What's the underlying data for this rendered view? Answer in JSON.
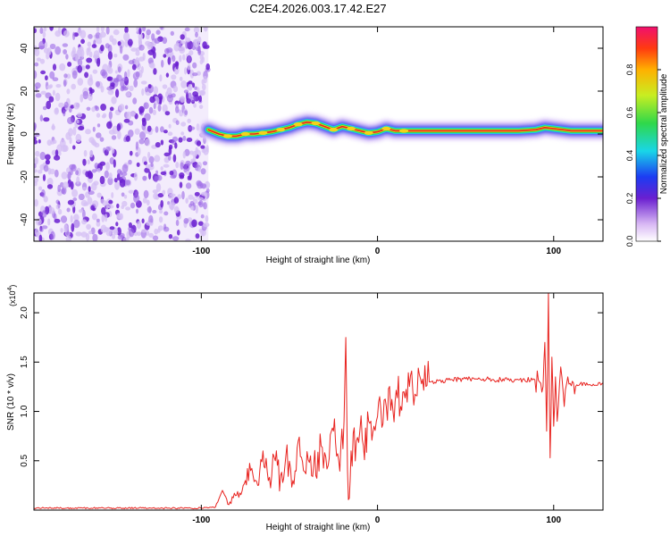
{
  "title": "C2E4.2026.003.17.42.E27",
  "colors": {
    "signal_line": "#e8231f",
    "noise_dots": "#6a1fd0",
    "axis": "#000000"
  },
  "chart_data": [
    {
      "type": "heatmap",
      "name": "spectrogram",
      "xlabel": "Height of straight line (km)",
      "ylabel": "Frequency (Hz)",
      "xlim": [
        -195,
        128
      ],
      "ylim": [
        -50,
        50
      ],
      "xticks": [
        -100,
        0,
        100
      ],
      "xtick_labels": [
        "-100",
        "0",
        "100"
      ],
      "yticks": [
        -40,
        -20,
        0,
        20,
        40
      ],
      "ytick_labels": [
        "-40",
        "-20",
        "0",
        "20",
        "40"
      ],
      "noise_region_x": [
        -195,
        -96
      ],
      "ridge": {
        "x": [
          -96,
          -90,
          -85,
          -80,
          -75,
          -70,
          -65,
          -60,
          -55,
          -50,
          -45,
          -40,
          -35,
          -30,
          -25,
          -20,
          -15,
          -10,
          -5,
          0,
          5,
          10,
          15,
          20,
          30,
          40,
          50,
          60,
          70,
          80,
          90,
          95,
          100,
          110,
          120,
          128
        ],
        "freq": [
          2,
          0,
          -1,
          -1,
          0,
          0,
          0.5,
          1,
          2,
          3,
          4.5,
          5.5,
          5,
          3.5,
          2,
          3.5,
          2.5,
          1.5,
          0.5,
          1,
          2.5,
          1.5,
          1.5,
          1.5,
          1.5,
          1.5,
          1.5,
          1.5,
          1.5,
          1.5,
          2,
          3,
          2.5,
          1.5,
          1.5,
          1.5
        ]
      },
      "colorbar": {
        "label": "Normalized spectral amplitude",
        "ticks": [
          0.0,
          0.2,
          0.4,
          0.6,
          0.8
        ],
        "tick_labels": [
          "0.0",
          "0.2",
          "0.4",
          "0.6",
          "0.8"
        ],
        "range": [
          0,
          1
        ]
      }
    },
    {
      "type": "line",
      "name": "snr",
      "xlabel": "Height of straight line (km)",
      "ylabel": "SNR (10 * v/v)",
      "y_multiplier": "(x10^4)",
      "xlim": [
        -195,
        128
      ],
      "ylim": [
        0,
        2.2
      ],
      "xticks": [
        -100,
        0,
        100
      ],
      "xtick_labels": [
        "-100",
        "0",
        "100"
      ],
      "yticks": [
        0.5,
        1.0,
        1.5,
        2.0
      ],
      "ytick_labels": [
        "0.5",
        "1.0",
        "1.5",
        "2.0"
      ],
      "series": [
        {
          "name": "SNR",
          "x": [
            -195,
            -150,
            -100,
            -92,
            -88,
            -85,
            -80,
            -75,
            -72,
            -68,
            -65,
            -62,
            -58,
            -55,
            -52,
            -48,
            -45,
            -42,
            -38,
            -35,
            -32,
            -28,
            -25,
            -22,
            -19,
            -18,
            -17,
            -16,
            -15,
            -12,
            -10,
            -8,
            -5,
            -2,
            0,
            5,
            10,
            15,
            20,
            25,
            30,
            40,
            50,
            60,
            70,
            80,
            88,
            92,
            94,
            95,
            96,
            97,
            98,
            99,
            100,
            101,
            102,
            104,
            106,
            108,
            110,
            115,
            120,
            128
          ],
          "y": [
            0.02,
            0.02,
            0.02,
            0.03,
            0.2,
            0.06,
            0.15,
            0.3,
            0.4,
            0.25,
            0.6,
            0.3,
            0.5,
            0.35,
            0.55,
            0.3,
            0.7,
            0.4,
            0.55,
            0.35,
            0.65,
            0.45,
            0.8,
            0.5,
            0.9,
            1.75,
            0.4,
            0.12,
            0.6,
            0.7,
            0.8,
            0.65,
            0.9,
            0.85,
            0.95,
            1.05,
            1.1,
            1.2,
            1.22,
            1.28,
            1.3,
            1.32,
            1.33,
            1.33,
            1.32,
            1.32,
            1.32,
            1.3,
            1.25,
            1.7,
            0.8,
            2.2,
            0.53,
            1.55,
            0.85,
            1.35,
            0.9,
            1.45,
            1.05,
            1.35,
            1.26,
            1.28,
            1.27,
            1.29
          ]
        }
      ]
    }
  ]
}
